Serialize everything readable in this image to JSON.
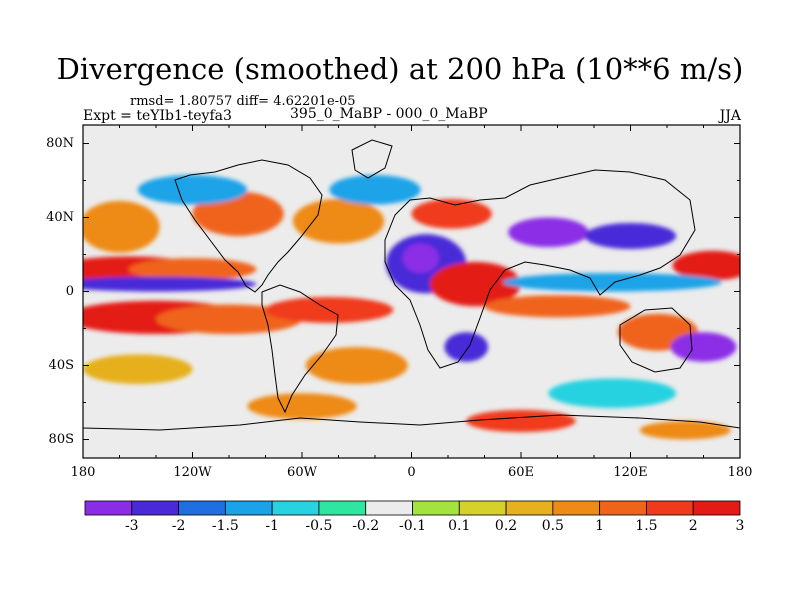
{
  "plot": {
    "title": "Divergence (smoothed) at 200 hPa (10**6 m/s)",
    "stats": "rmsd= 1.80757 diff= 4.62201e-05",
    "experiment": "Expt = teYIb1-teyfa3",
    "subtitle": "395_0_MaBP - 000_0_MaBP",
    "season": "JJA"
  },
  "axes": {
    "x_ticks": [
      {
        "lon": -180,
        "label": "180"
      },
      {
        "lon": -120,
        "label": "120W"
      },
      {
        "lon": -60,
        "label": "60W"
      },
      {
        "lon": 0,
        "label": "0"
      },
      {
        "lon": 60,
        "label": "60E"
      },
      {
        "lon": 120,
        "label": "120E"
      },
      {
        "lon": 180,
        "label": "180"
      }
    ],
    "y_ticks": [
      {
        "lat": 80,
        "label": "80N"
      },
      {
        "lat": 40,
        "label": "40N"
      },
      {
        "lat": 0,
        "label": "0"
      },
      {
        "lat": -40,
        "label": "40S"
      },
      {
        "lat": -80,
        "label": "80S"
      }
    ],
    "lon_range": [
      -180,
      180
    ],
    "lat_range": [
      -90,
      90
    ]
  },
  "colorbar": {
    "colors": [
      "#8b2de6",
      "#4a2ad8",
      "#1f6fe0",
      "#1aa3e8",
      "#28d2e0",
      "#2ee6a0",
      "#ececec",
      "#a4e23e",
      "#d8d02a",
      "#e6b01e",
      "#ee8a18",
      "#f0641a",
      "#f03a1c",
      "#e41a16"
    ],
    "labels": [
      "-3",
      "-2",
      "-1.5",
      "-1",
      "-0.5",
      "-0.2",
      "-0.1",
      "0.1",
      "0.2",
      "0.5",
      "1",
      "1.5",
      "2",
      "3"
    ]
  },
  "field_blobs": [
    {
      "lon": -155,
      "lat": 12,
      "rlon": 40,
      "rlat": 7,
      "level": 13
    },
    {
      "lon": -120,
      "lat": 12,
      "rlon": 35,
      "rlat": 6,
      "level": 11
    },
    {
      "lon": -140,
      "lat": 4,
      "rlon": 55,
      "rlat": 4,
      "level": 1
    },
    {
      "lon": -140,
      "lat": -14,
      "rlon": 50,
      "rlat": 9,
      "level": 13
    },
    {
      "lon": -100,
      "lat": -15,
      "rlon": 40,
      "rlat": 8,
      "level": 11
    },
    {
      "lon": -45,
      "lat": -10,
      "rlon": 35,
      "rlat": 7,
      "level": 12
    },
    {
      "lon": -160,
      "lat": 35,
      "rlon": 22,
      "rlat": 14,
      "level": 10
    },
    {
      "lon": -95,
      "lat": 42,
      "rlon": 25,
      "rlat": 12,
      "level": 11
    },
    {
      "lon": -40,
      "lat": 38,
      "rlon": 25,
      "rlat": 12,
      "level": 10
    },
    {
      "lon": -120,
      "lat": 55,
      "rlon": 30,
      "rlat": 8,
      "level": 3
    },
    {
      "lon": -20,
      "lat": 55,
      "rlon": 25,
      "rlat": 8,
      "level": 3
    },
    {
      "lon": 8,
      "lat": 15,
      "rlon": 22,
      "rlat": 16,
      "level": 1
    },
    {
      "lon": 5,
      "lat": 18,
      "rlon": 10,
      "rlat": 8,
      "level": 0
    },
    {
      "lon": 35,
      "lat": 4,
      "rlon": 25,
      "rlat": 12,
      "level": 13
    },
    {
      "lon": 22,
      "lat": 42,
      "rlon": 22,
      "rlat": 8,
      "level": 12
    },
    {
      "lon": 75,
      "lat": 32,
      "rlon": 22,
      "rlat": 8,
      "level": 0
    },
    {
      "lon": 120,
      "lat": 30,
      "rlon": 25,
      "rlat": 7,
      "level": 1
    },
    {
      "lon": 165,
      "lat": 14,
      "rlon": 22,
      "rlat": 8,
      "level": 13
    },
    {
      "lon": 110,
      "lat": 5,
      "rlon": 60,
      "rlat": 5,
      "level": 3
    },
    {
      "lon": 80,
      "lat": -8,
      "rlon": 40,
      "rlat": 6,
      "level": 11
    },
    {
      "lon": 30,
      "lat": -30,
      "rlon": 12,
      "rlat": 8,
      "level": 1
    },
    {
      "lon": 135,
      "lat": -22,
      "rlon": 22,
      "rlat": 10,
      "level": 11
    },
    {
      "lon": 160,
      "lat": -30,
      "rlon": 18,
      "rlat": 8,
      "level": 0
    },
    {
      "lon": -30,
      "lat": -40,
      "rlon": 28,
      "rlat": 10,
      "level": 10
    },
    {
      "lon": -150,
      "lat": -42,
      "rlon": 30,
      "rlat": 8,
      "level": 9
    },
    {
      "lon": 110,
      "lat": -55,
      "rlon": 35,
      "rlat": 8,
      "level": 4
    },
    {
      "lon": -60,
      "lat": -62,
      "rlon": 30,
      "rlat": 7,
      "level": 10
    },
    {
      "lon": 60,
      "lat": -70,
      "rlon": 30,
      "rlat": 6,
      "level": 12
    },
    {
      "lon": 150,
      "lat": -75,
      "rlon": 25,
      "rlat": 5,
      "level": 10
    }
  ]
}
